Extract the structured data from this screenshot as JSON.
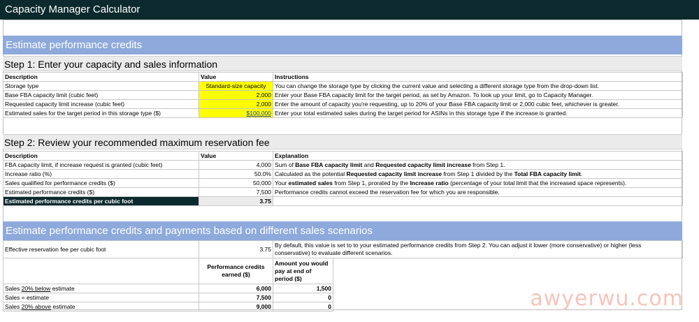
{
  "title": "Capacity Manager Calculator",
  "section1": {
    "heading": "Estimate performance credits"
  },
  "step1": {
    "heading": "Step 1: Enter your capacity and sales information",
    "headers": [
      "Description",
      "Value",
      "Instructions"
    ],
    "rows": [
      {
        "desc": "Storage type",
        "value": "Standard-size capacity",
        "instr": "You can change the storage type by clicking the current value and selecting a different storage type from the drop-down list."
      },
      {
        "desc": "Base FBA capacity limit (cubic feet)",
        "value": "2,000",
        "instr": "Enter your Base FBA capacity limit for the target period, as set by Amazon. To look up your limit, go to Capacity Manager."
      },
      {
        "desc": "Requested capacity limit increase (cubic feet)",
        "value": "2,000",
        "instr": "Enter the amount of capacity you're requesting, up to 20% of your Base FBA capacity limit or 2,000 cubic feet, whichever is greater."
      },
      {
        "desc": "Estimated sales for the target period in this storage type ($)",
        "value": "$100,000",
        "instr": "Enter your total estimated sales during the target period for ASINs in this storage type if the increase is granted."
      }
    ]
  },
  "step2": {
    "heading": "Step 2: Review your recommended maximum reservation fee",
    "headers": [
      "Description",
      "Value",
      "Explanation"
    ],
    "rows": [
      {
        "desc": "FBA capacity limit, if increase request is granted (cubic feet)",
        "value": "4,000",
        "e1": "Sum of ",
        "b1": "Base FBA capacity limit",
        "e2": " and ",
        "b2": "Requested capacity limit increase",
        "e3": " from Step 1.",
        "b3": "",
        "e4": ""
      },
      {
        "desc": "Increase ratio (%)",
        "value": "50.0%",
        "e1": "Calculated as the potential ",
        "b1": "Requested capacity limit increase",
        "e2": " from Step 1 divided by the ",
        "b2": "Total FBA capacity limit",
        "e3": ".",
        "b3": "",
        "e4": ""
      },
      {
        "desc": "Sales qualified for performance credits ($)",
        "value": "50,000",
        "e1": "Your ",
        "b1": "estimated sales",
        "e2": " from Step 1, prorated by the ",
        "b2": "Increase ratio",
        "e3": " (percentage of your total limit that the increased space represents).",
        "b3": "",
        "e4": ""
      },
      {
        "desc": "Estimated performance credits ($)",
        "value": "7,500",
        "e1": "Performance credits cannot exceed the reservation fee for which you are responsible.",
        "b1": "",
        "e2": "",
        "b2": "",
        "e3": "",
        "b3": "",
        "e4": ""
      }
    ],
    "result": {
      "desc": "Estimated performance credits per cubic foot",
      "value": "3.75"
    }
  },
  "section2": {
    "heading": "Estimate performance credits and payments based on different sales scenarios",
    "fee_label": "Effective reservation fee per cubic foot",
    "fee_value": "3.75",
    "fee_note_1": "By default, this value is set to to your estimated performance credits from Step 2. You can adjust it lower (more conservative) or higher (less",
    "fee_note_2": "conservative) to evaluate different scenarios.",
    "col_credits_1": "Performance credits",
    "col_credits_2": "earned ($)",
    "col_pay_1": "Amount you would",
    "col_pay_2": "pay at end of",
    "col_pay_3": "period ($)",
    "scenarios": [
      {
        "pre": "Sales ",
        "ul": "20% below",
        "post": " estimate",
        "credits": "6,000",
        "pay": "1,500"
      },
      {
        "pre": "Sales = estimate",
        "ul": "",
        "post": "",
        "credits": "7,500",
        "pay": "0"
      },
      {
        "pre": "Sales ",
        "ul": "20% above",
        "post": " estimate",
        "credits": "9,000",
        "pay": "0"
      }
    ]
  },
  "watermark": "awyerwu.com",
  "colors": {
    "titlebar": "#0c2a2e",
    "section_header": "#8ea9db",
    "input_highlight": "#ffff00"
  }
}
